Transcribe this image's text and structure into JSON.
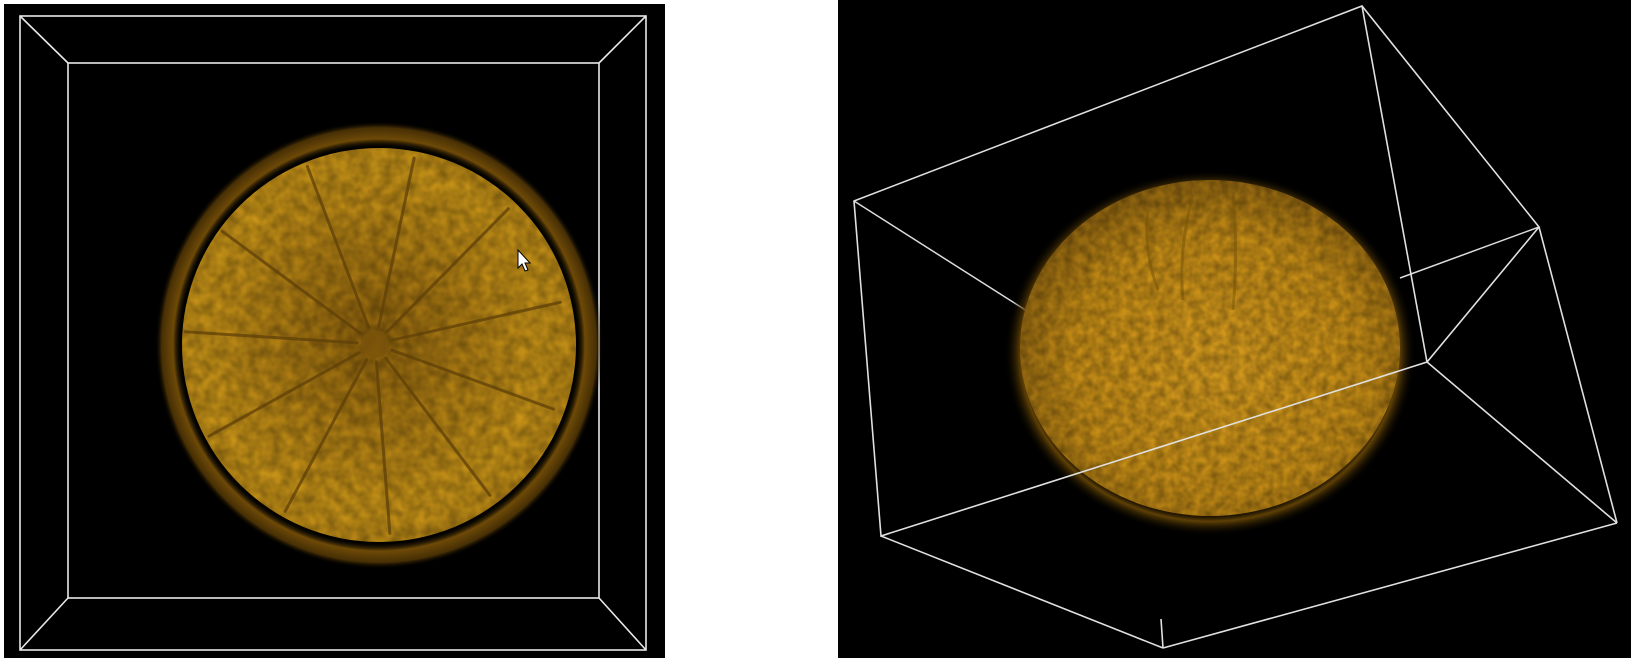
{
  "views": [
    {
      "id": "front-view",
      "subject": "orange-cross-section-volume-render",
      "background_color": "#000000",
      "bounding_box_color": "#e8e8e8",
      "volume_color": "#c8900f",
      "segments": 11
    },
    {
      "id": "oblique-view",
      "subject": "orange-volume-render-rotated",
      "background_color": "#000000",
      "bounding_box_color": "#e0e0e0",
      "volume_color": "#d89a1a"
    }
  ],
  "cursor": {
    "icon": "arrow-cursor-icon"
  }
}
